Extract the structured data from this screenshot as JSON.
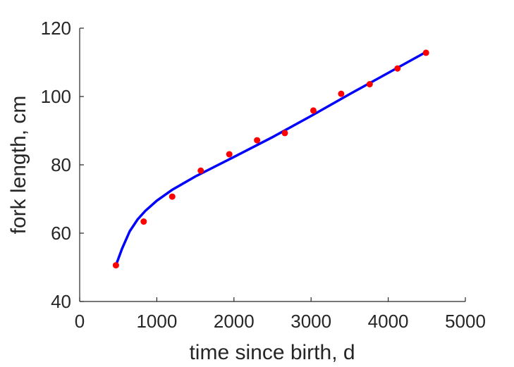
{
  "chart_data": {
    "type": "scatter",
    "title": "",
    "xlabel": "time since birth, d",
    "ylabel": "fork length, cm",
    "xlim": [
      0,
      5000
    ],
    "ylim": [
      40,
      120
    ],
    "xticks": [
      0,
      1000,
      2000,
      3000,
      4000,
      5000
    ],
    "yticks": [
      40,
      60,
      80,
      100,
      120
    ],
    "grid": false,
    "legend": "none",
    "series": [
      {
        "kind": "points",
        "color": "#ff0000",
        "x": [
          470,
          830,
          1200,
          1570,
          1940,
          2300,
          2660,
          3030,
          3390,
          3760,
          4120,
          4490
        ],
        "y": [
          50.6,
          63.4,
          70.7,
          78.3,
          83.1,
          87.2,
          89.3,
          95.9,
          100.8,
          103.6,
          108.2,
          112.8
        ]
      },
      {
        "kind": "line",
        "color": "#0000ff",
        "x": [
          470,
          550,
          650,
          750,
          850,
          1000,
          1200,
          1500,
          2000,
          2500,
          3000,
          3500,
          4000,
          4490
        ],
        "y": [
          50.6,
          55.5,
          60.6,
          64.0,
          66.5,
          69.5,
          72.7,
          76.6,
          82.3,
          88.1,
          94.3,
          100.7,
          106.9,
          113.0
        ]
      }
    ]
  }
}
